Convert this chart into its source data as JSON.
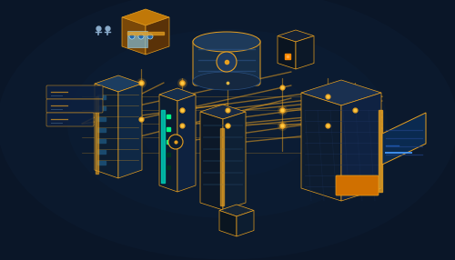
{
  "background_color": "#0a1628",
  "gold_color": "#e8a020",
  "gold_light": "#ffcc44",
  "gold_dark": "#c07010",
  "device_dark": "#112240",
  "device_mid": "#1a3055",
  "device_blue1": "#152e4a",
  "device_blue2": "#1a3a5c",
  "device_blue3": "#0d1e30",
  "cyan_accent": "#00e5cc",
  "teal_accent": "#00c8aa",
  "green_led": "#00ff88",
  "orange_accent": "#e87c1e",
  "screen_blue": "#0d3060",
  "yellow_box": "#c87c10",
  "yellow_box_dark": "#7a4a08"
}
